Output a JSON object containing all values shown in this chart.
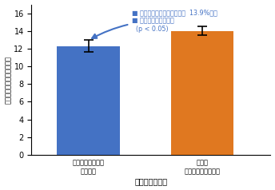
{
  "bar_values": [
    12.3,
    14.0
  ],
  "bar_errors": [
    0.65,
    0.5
  ],
  "bar_colors": [
    "#4472C4",
    "#E07820"
  ],
  "bar_labels": [
    "観察・教示ともに\n手指動作",
    "観察に\nコントローラー使用"
  ],
  "xlabel": "観察・教示条件",
  "ylabel": "観察・作業指示時間（秒）",
  "ylim": [
    0,
    17
  ],
  "yticks": [
    0,
    2,
    4,
    6,
    8,
    10,
    12,
    14,
    16
  ],
  "annotation_line1": "指示終了までに要する時間  13.9%短縮",
  "annotation_line2": "統計的に有意差あり",
  "annotation_line3": "(p < 0.05)",
  "text_color": "#4472C4",
  "background_color": "#FFFFFF",
  "bullet": "■"
}
